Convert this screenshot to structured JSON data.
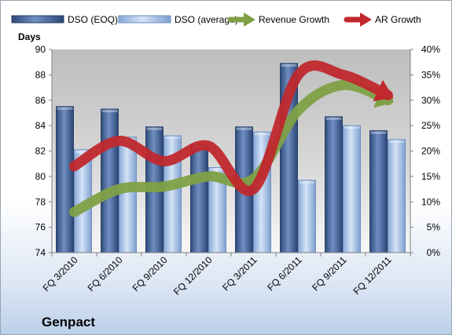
{
  "chart_data": {
    "type": "bar",
    "subtitle": "Genpact",
    "ylabel": "Days",
    "ylabel_right": "",
    "categories": [
      "FQ 3/2010",
      "FQ 6/2010",
      "FQ 9/2010",
      "FQ 12/2010",
      "FQ 3/2011",
      "FQ 6/2011",
      "FQ 9/2011",
      "FQ 12/2011"
    ],
    "ylim": [
      74,
      90
    ],
    "ylim_right": [
      0,
      40
    ],
    "yticks": [
      "74",
      "76",
      "78",
      "80",
      "82",
      "84",
      "86",
      "88",
      "90"
    ],
    "yticks_right": [
      "0%",
      "5%",
      "10%",
      "15%",
      "20%",
      "25%",
      "30%",
      "35%",
      "40%"
    ],
    "legend_position": "top",
    "grid": false,
    "series": [
      {
        "name": "DSO (EOQ)",
        "type": "bar",
        "axis": "left",
        "color": "#3f5f93",
        "values": [
          85.5,
          85.3,
          83.9,
          82.5,
          83.9,
          88.9,
          84.7,
          83.6
        ]
      },
      {
        "name": "DSO (average)",
        "type": "bar",
        "axis": "left",
        "color": "#a9c4e8",
        "values": [
          82.1,
          83.1,
          83.2,
          80.7,
          83.5,
          79.7,
          84.0,
          82.9
        ]
      },
      {
        "name": "Revenue Growth",
        "type": "line",
        "axis": "right",
        "color": "#7fa046",
        "values": [
          8,
          12.5,
          13,
          15,
          14.5,
          28,
          33,
          30
        ]
      },
      {
        "name": "AR Growth",
        "type": "line",
        "axis": "right",
        "color": "#c0282d",
        "values": [
          17,
          22,
          18,
          21,
          12.5,
          35,
          35,
          31
        ]
      }
    ]
  }
}
